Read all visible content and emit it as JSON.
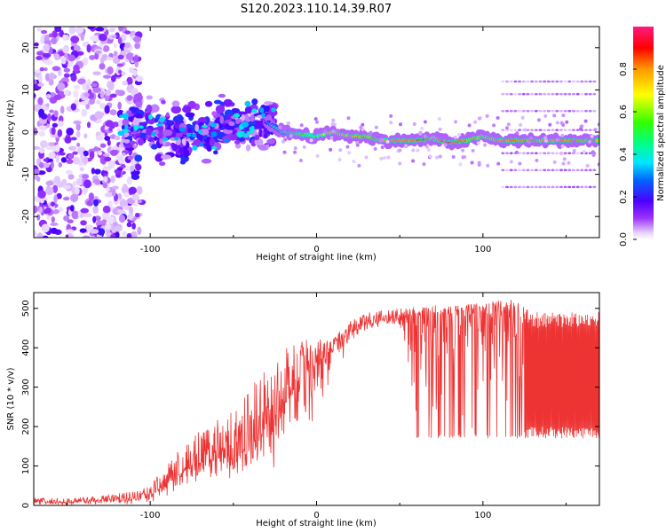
{
  "figure": {
    "title": "S120.2023.110.14.39.R07"
  },
  "chart_data": [
    {
      "type": "heatmap",
      "xlabel": "Height of straight line (km)",
      "ylabel": "Frequency (Hz)",
      "xlim": [
        -170,
        170
      ],
      "ylim": [
        -25,
        25
      ],
      "xticks": [
        -100,
        0,
        100
      ],
      "yticks": [
        -20,
        -10,
        0,
        10,
        20
      ],
      "grid": false,
      "colorbar": {
        "label": "Normalized spectral amplitude",
        "range": [
          0,
          1
        ],
        "ticks": [
          0.0,
          0.2,
          0.4,
          0.6,
          0.8
        ],
        "tick_labels": [
          "0.0",
          "0.2",
          "0.4",
          "0.6",
          "0.8"
        ],
        "colormap": "rainbow (white → purple → blue → cyan → green → yellow → red → pink)"
      },
      "ridge": {
        "x": [
          -30,
          -20,
          -10,
          0,
          10,
          20,
          30,
          40,
          50,
          60,
          70,
          80,
          90,
          100,
          110,
          120,
          130,
          140,
          150,
          160,
          170
        ],
        "frequency": [
          2.5,
          0,
          -0.5,
          -1,
          0,
          -1,
          -1,
          -2,
          -2,
          -2,
          -1.5,
          -2.5,
          -2,
          -1,
          -2,
          -2,
          -2,
          -2,
          -2,
          -2,
          -2
        ],
        "peak_amplitude": [
          0.3,
          0.5,
          0.6,
          0.6,
          0.85,
          0.8,
          0.85,
          0.85,
          0.85,
          0.9,
          0.85,
          0.9,
          0.85,
          0.8,
          0.85,
          0.85,
          0.85,
          0.85,
          0.85,
          0.85,
          0.85
        ]
      }
    },
    {
      "type": "line",
      "xlabel": "Height of straight line (km)",
      "ylabel": "SNR (10 * v/v)",
      "xlim": [
        -170,
        170
      ],
      "ylim": [
        0,
        540
      ],
      "xticks": [
        -100,
        0,
        100
      ],
      "yticks": [
        0,
        100,
        200,
        300,
        400,
        500
      ],
      "grid": false,
      "color": "#ee3333",
      "series": [
        {
          "x": [
            -170,
            -150,
            -130,
            -110,
            -100,
            -90,
            -80,
            -70,
            -60,
            -50,
            -40,
            -30,
            -20,
            -10,
            0,
            10,
            20,
            30,
            40,
            50,
            60,
            70,
            80,
            90,
            100,
            110,
            120,
            125,
            130,
            140,
            150,
            160,
            170
          ],
          "y": [
            10,
            8,
            12,
            15,
            25,
            60,
            90,
            110,
            120,
            130,
            150,
            200,
            260,
            330,
            370,
            400,
            440,
            460,
            470,
            475,
            480,
            485,
            480,
            485,
            488,
            490,
            490,
            480,
            300,
            300,
            300,
            300,
            300
          ],
          "upper": [
            20,
            18,
            25,
            35,
            50,
            110,
            160,
            190,
            220,
            250,
            300,
            350,
            400,
            420,
            420,
            430,
            470,
            490,
            495,
            500,
            505,
            510,
            505,
            510,
            515,
            520,
            530,
            500,
            490,
            490,
            490,
            490,
            490
          ],
          "lower": [
            0,
            0,
            0,
            0,
            5,
            20,
            30,
            40,
            50,
            50,
            60,
            60,
            80,
            120,
            160,
            300,
            400,
            440,
            450,
            455,
            165,
            170,
            170,
            170,
            170,
            170,
            170,
            170,
            170,
            170,
            170,
            170,
            170
          ]
        }
      ]
    }
  ]
}
